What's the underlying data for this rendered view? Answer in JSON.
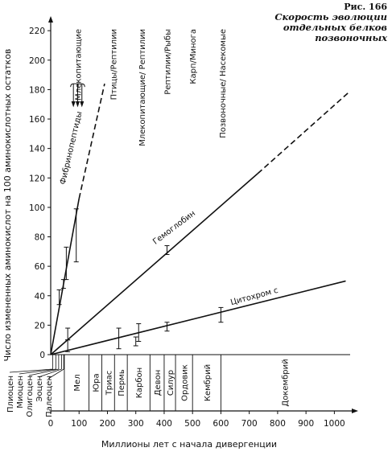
{
  "figure": {
    "number": "Рис. 166",
    "title_lines": [
      "Скорость эволюции",
      "отдельных белков",
      "позвоночных"
    ]
  },
  "chart_data": {
    "type": "line",
    "title": "Скорость эволюции отдельных белков позвоночных",
    "xlabel": "Миллионы лет с начала дивергенции",
    "ylabel": "Число измененных аминокислот на 100 аминокислотных остатков",
    "xlim": [
      0,
      1050
    ],
    "ylim": [
      0,
      225
    ],
    "xticks": [
      0,
      100,
      200,
      300,
      400,
      500,
      600,
      700,
      800,
      900,
      1000
    ],
    "yticks": [
      0,
      20,
      40,
      60,
      80,
      100,
      120,
      140,
      160,
      180,
      200,
      220
    ],
    "grid": false,
    "series": [
      {
        "name": "Фибринопептиды",
        "solid_x": [
          0,
          100
        ],
        "solid_y": [
          0,
          106
        ],
        "dashed_x": [
          100,
          190
        ],
        "dashed_y": [
          106,
          184
        ],
        "points": [
          {
            "x": 30,
            "y": 39,
            "err": 5
          },
          {
            "x": 45,
            "y": 48,
            "err": 3
          },
          {
            "x": 55,
            "y": 62,
            "err": 11
          },
          {
            "x": 90,
            "y": 81,
            "err": 18
          }
        ]
      },
      {
        "name": "Гемоглобин",
        "solid_x": [
          0,
          730
        ],
        "solid_y": [
          0,
          123
        ],
        "dashed_x": [
          730,
          1050
        ],
        "dashed_y": [
          123,
          178
        ],
        "points": [
          {
            "x": 60,
            "y": 14,
            "err": 4
          },
          {
            "x": 410,
            "y": 71,
            "err": 3
          }
        ]
      },
      {
        "name": "Цитохром с",
        "solid_x": [
          0,
          1040
        ],
        "solid_y": [
          0,
          50
        ],
        "points": [
          {
            "x": 60,
            "y": 6,
            "err": 4
          },
          {
            "x": 240,
            "y": 11,
            "err": 7
          },
          {
            "x": 300,
            "y": 9,
            "err": 3
          },
          {
            "x": 310,
            "y": 15,
            "err": 6
          },
          {
            "x": 410,
            "y": 19,
            "err": 3
          },
          {
            "x": 600,
            "y": 27,
            "err": 5
          }
        ]
      }
    ],
    "divergence_markers": [
      {
        "label": "Млекопитающие",
        "x": 95
      },
      {
        "label": "Птицы/Рептилии",
        "x": 220
      },
      {
        "label": "Млекопитающие/ Рептилии",
        "x": 320
      },
      {
        "label": "Рептилии/Рыбы",
        "x": 410
      },
      {
        "label": "Карп/Минога",
        "x": 500
      },
      {
        "label": "Позвоночные/ Насекомые",
        "x": 605
      }
    ],
    "geologic_periods": [
      {
        "label": "Мел",
        "start": 48,
        "end": 135
      },
      {
        "label": "Юра",
        "start": 135,
        "end": 180
      },
      {
        "label": "Триас",
        "start": 180,
        "end": 225
      },
      {
        "label": "Пермь",
        "start": 225,
        "end": 270
      },
      {
        "label": "Карбон",
        "start": 270,
        "end": 350
      },
      {
        "label": "Девон",
        "start": 350,
        "end": 400
      },
      {
        "label": "Силур",
        "start": 400,
        "end": 440
      },
      {
        "label": "Ордовик",
        "start": 440,
        "end": 500
      },
      {
        "label": "Кембрий",
        "start": 500,
        "end": 600
      },
      {
        "label": "Докембрий",
        "start": 600,
        "end": 1050
      }
    ],
    "tertiary_epochs": [
      {
        "label": "Плиоцен",
        "x": 7
      },
      {
        "label": "Миоцен",
        "x": 18
      },
      {
        "label": "Олигоцен",
        "x": 28
      },
      {
        "label": "Эоцен",
        "x": 38
      },
      {
        "label": "Палеоцен",
        "x": 46
      }
    ]
  }
}
